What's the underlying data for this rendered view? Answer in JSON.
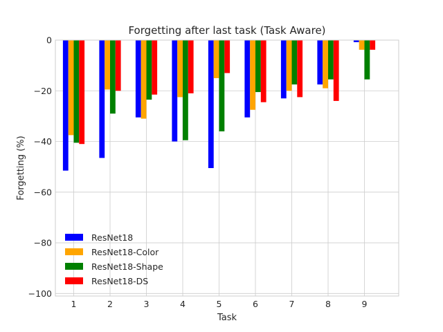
{
  "chart_data": {
    "type": "bar",
    "title": "Forgetting after last task (Task Aware)",
    "xlabel": "Task",
    "ylabel": "Forgetting (%)",
    "categories": [
      "1",
      "2",
      "3",
      "4",
      "5",
      "6",
      "7",
      "8",
      "9"
    ],
    "ylim": [
      -101,
      0
    ],
    "yticks": [
      0,
      -20,
      -40,
      -60,
      -80,
      -100
    ],
    "ytick_labels": [
      "0",
      "−20",
      "−40",
      "−60",
      "−80",
      "−100"
    ],
    "grid": true,
    "legend_position": "lower-left",
    "series": [
      {
        "name": "ResNet18",
        "color": "#0000ff",
        "values": [
          -51.5,
          -46.5,
          -30.5,
          -40.0,
          -50.5,
          -30.5,
          -23.0,
          -17.5,
          -0.8
        ]
      },
      {
        "name": "ResNet18-Color",
        "color": "#ffa500",
        "values": [
          -37.5,
          -19.5,
          -31.0,
          -22.5,
          -15.0,
          -27.5,
          -20.0,
          -19.0,
          -3.8
        ]
      },
      {
        "name": "ResNet18-Shape",
        "color": "#008000",
        "values": [
          -40.5,
          -29.0,
          -23.5,
          -39.5,
          -36.0,
          -20.5,
          -17.5,
          -15.5,
          -15.5
        ]
      },
      {
        "name": "ResNet18-DS",
        "color": "#ff0000",
        "values": [
          -41.0,
          -20.0,
          -21.5,
          -21.0,
          -13.0,
          -24.5,
          -22.5,
          -24.0,
          -3.8
        ]
      }
    ]
  }
}
